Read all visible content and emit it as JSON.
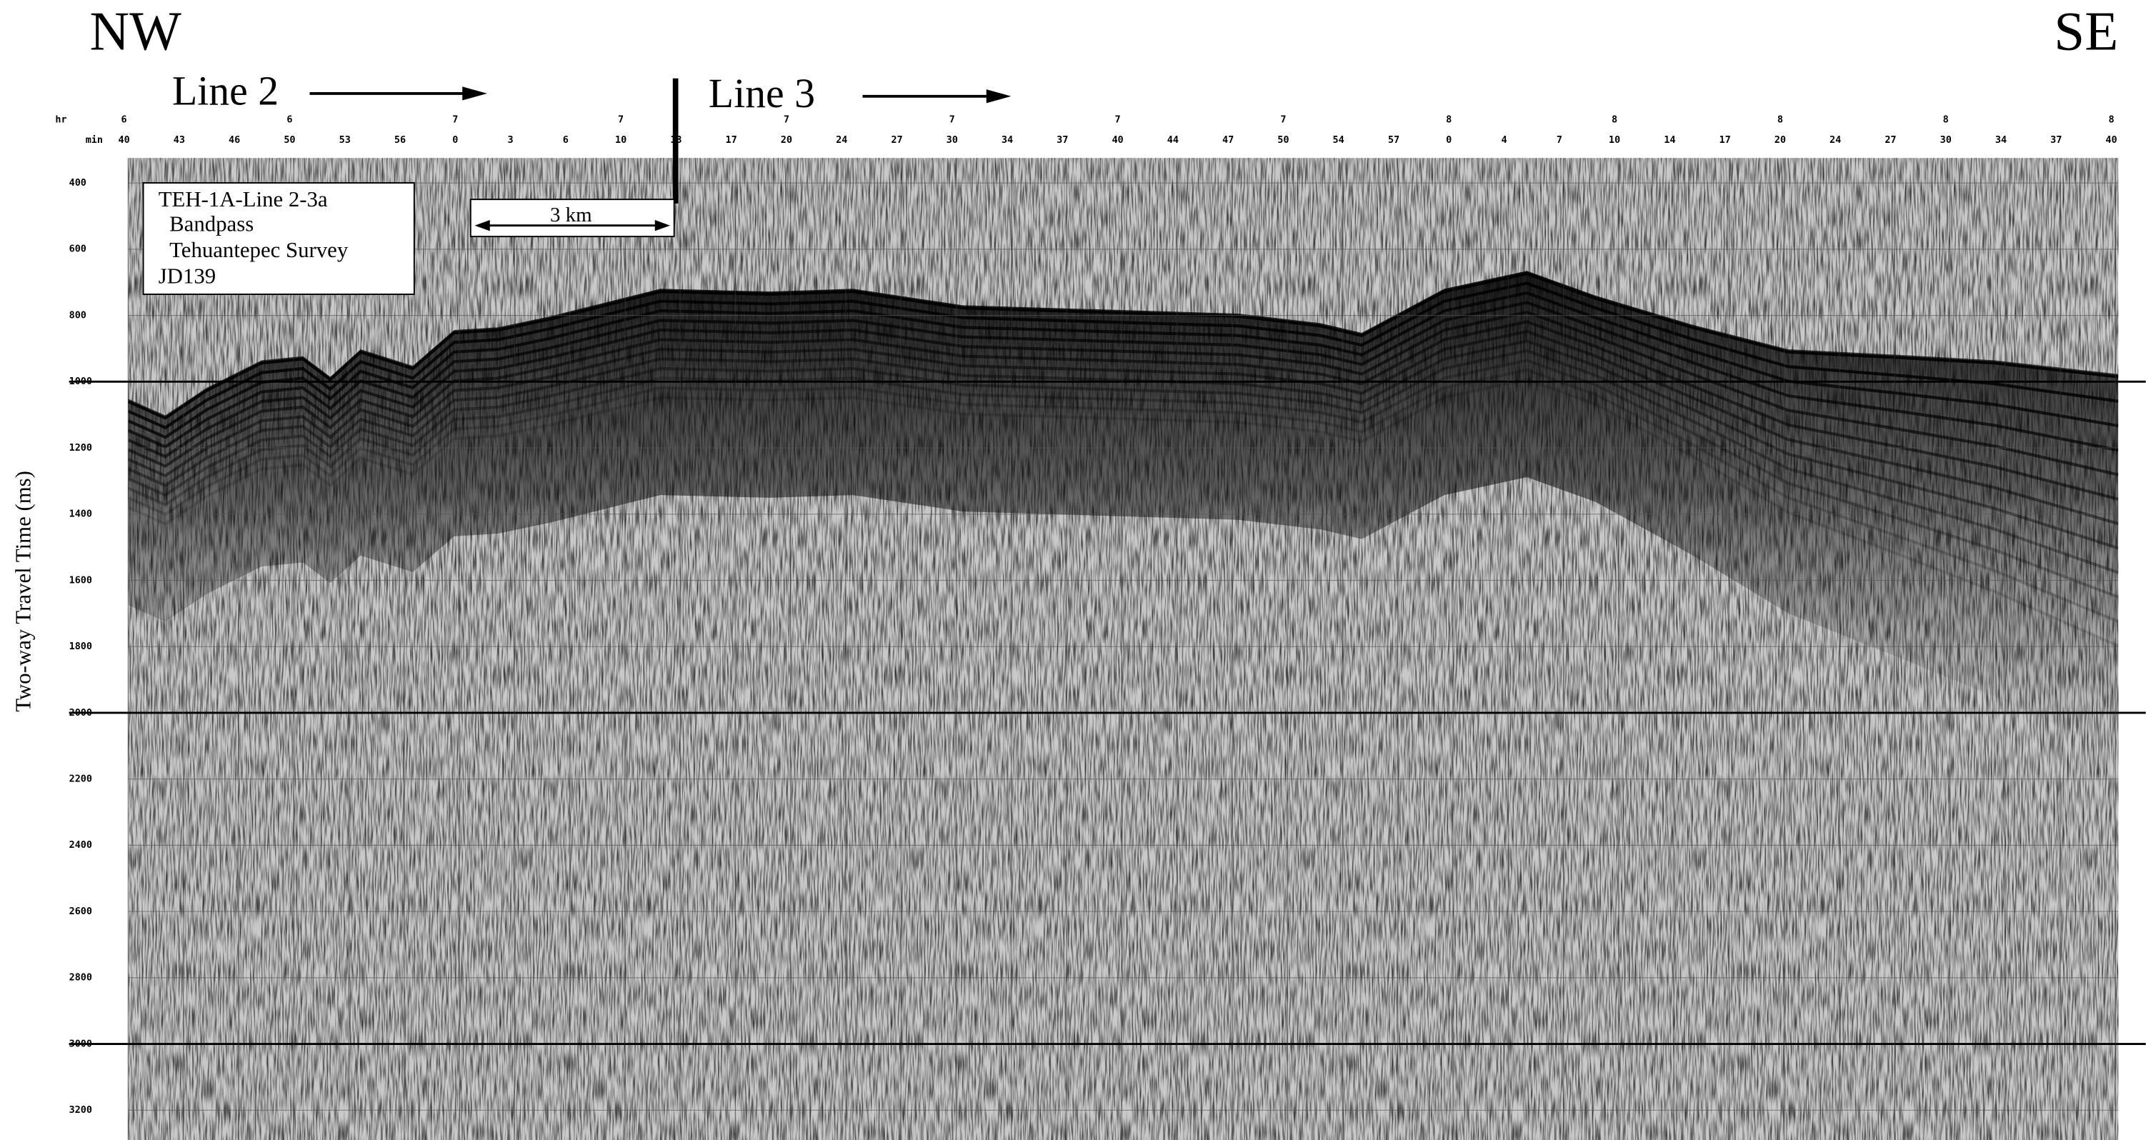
{
  "direction": {
    "left": "NW",
    "right": "SE"
  },
  "lines": [
    "Line 2",
    "Line 3"
  ],
  "scale_bar": "3 km",
  "info_box": [
    "TEH-1A-Line 2-3a",
    "Bandpass",
    "Tehuantepec Survey",
    "JD139"
  ],
  "y_axis": {
    "title": "Two-way Travel Time (ms)",
    "ylim": [
      325,
      3290
    ],
    "yticks": [
      400,
      600,
      800,
      1000,
      1200,
      1400,
      1600,
      1800,
      2000,
      2200,
      2400,
      2600,
      2800,
      3000,
      3200
    ]
  },
  "time_axis": {
    "hr_label": "hr",
    "min_label": "min",
    "hours": [
      6,
      6,
      7,
      7,
      7,
      7,
      7,
      7,
      8,
      8,
      8,
      8,
      8
    ],
    "minutes": [
      40,
      43,
      46,
      50,
      53,
      56,
      0,
      3,
      6,
      10,
      13,
      17,
      20,
      24,
      27,
      30,
      34,
      37,
      40,
      44,
      47,
      50,
      54,
      57,
      0,
      4,
      7,
      10,
      14,
      17,
      20,
      24,
      27,
      30,
      34,
      37,
      40
    ]
  }
}
